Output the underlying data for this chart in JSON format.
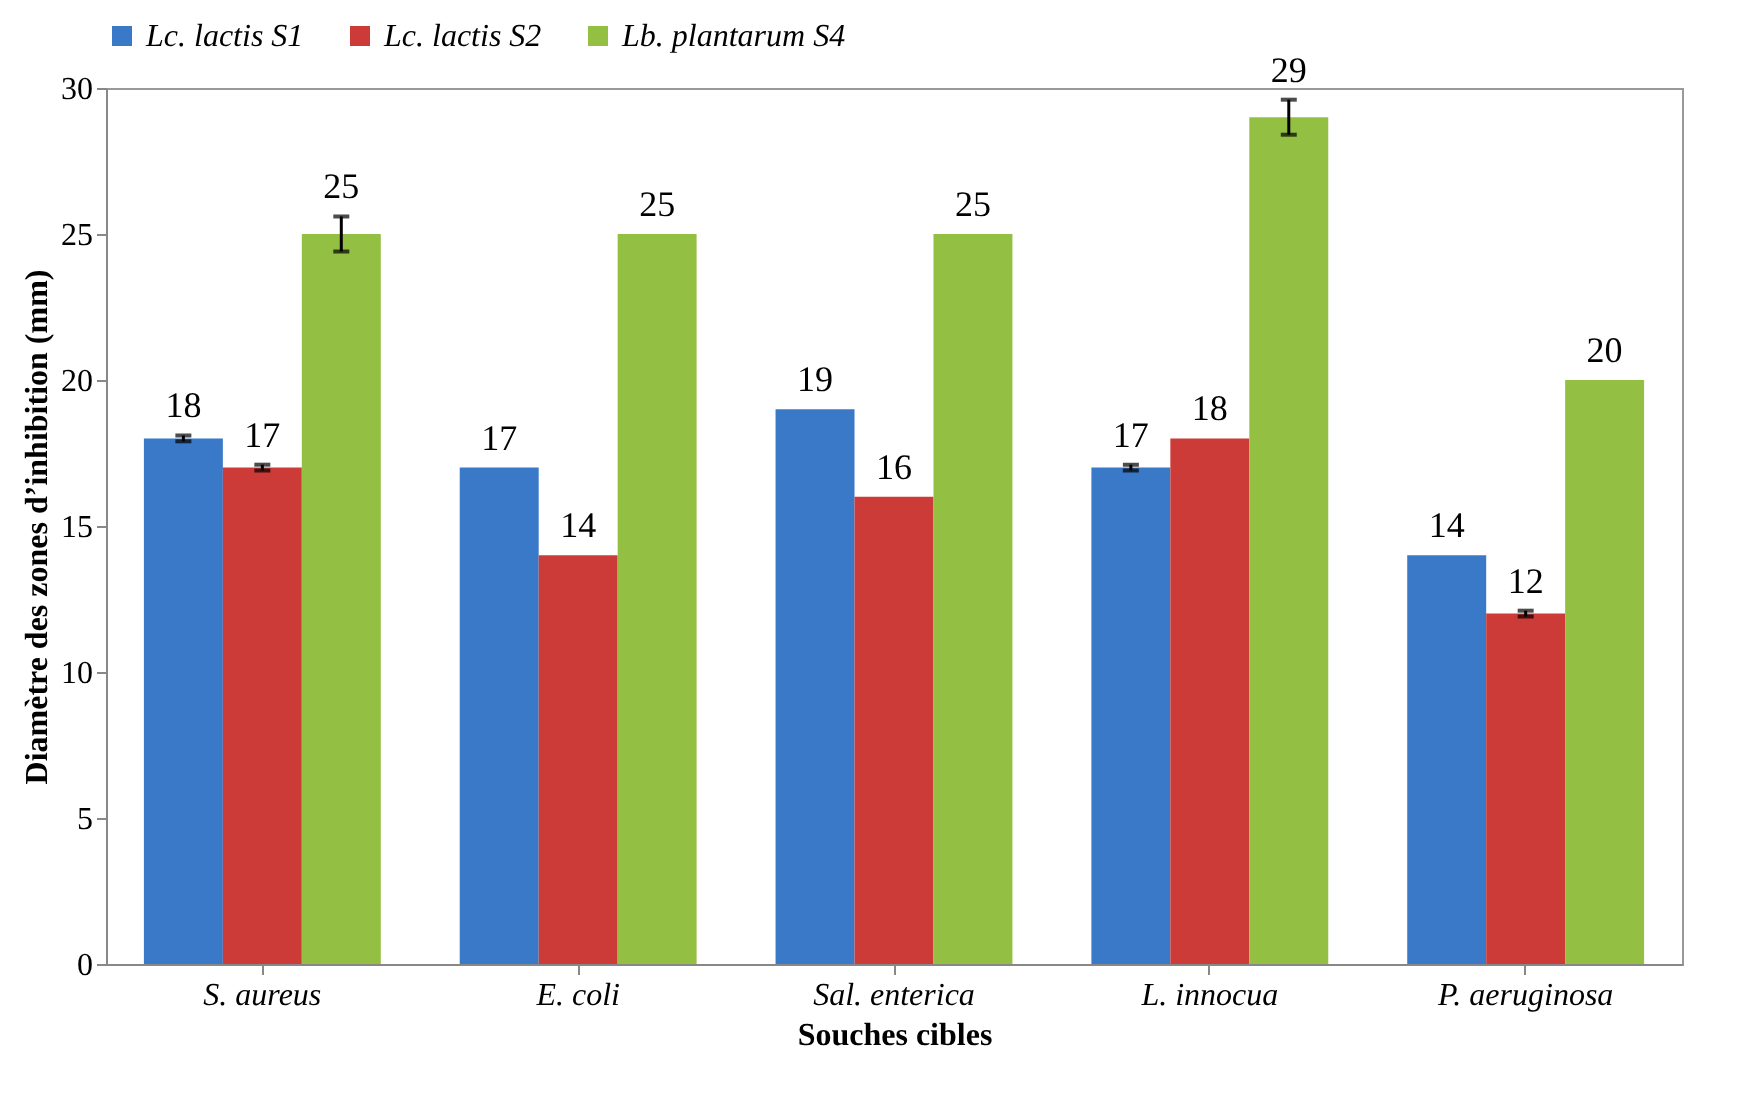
{
  "chart_data": {
    "type": "bar",
    "xlabel": "Souches cibles",
    "ylabel": "Diamètre des zones d’inhibition (mm)",
    "categories": [
      "S. aureus",
      "E. coli",
      "Sal. enterica",
      "L. innocua",
      "P. aeruginosa"
    ],
    "series": [
      {
        "name": "Lc. lactis S1",
        "color": "#3a78c8",
        "values": [
          18,
          17,
          19,
          17,
          14
        ],
        "errors": [
          0.1,
          null,
          null,
          0.1,
          null
        ]
      },
      {
        "name": "Lc. lactis S2",
        "color": "#cc3b37",
        "values": [
          17,
          14,
          16,
          18,
          12
        ],
        "errors": [
          0.1,
          null,
          null,
          null,
          0.1
        ]
      },
      {
        "name": "Lb. plantarum S4",
        "color": "#93c043",
        "values": [
          25,
          25,
          25,
          29,
          20
        ],
        "errors": [
          0.6,
          null,
          null,
          0.6,
          null
        ]
      }
    ],
    "ylim": [
      0,
      30
    ],
    "yticks": [
      0,
      5,
      10,
      15,
      20,
      25,
      30
    ],
    "grid": false,
    "legend": "top",
    "data_labels": true
  }
}
